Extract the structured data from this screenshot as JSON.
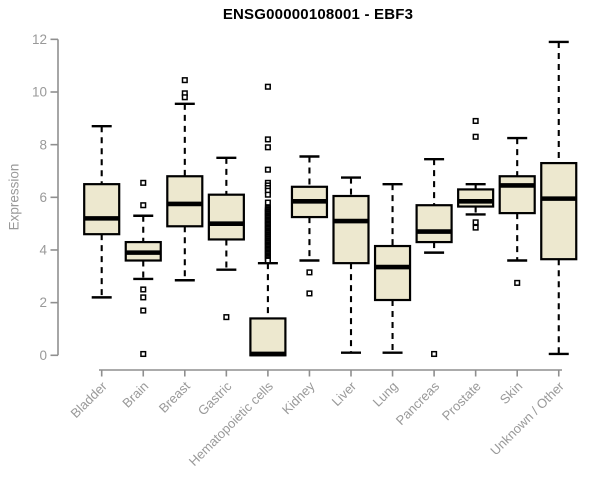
{
  "colors": {
    "box_fill": "#ede8cf",
    "box_stroke": "#000000",
    "axis_line": "#8f8f8f",
    "axis_text": "#999999",
    "title_text": "#000000",
    "background": "#ffffff"
  },
  "chart_data": {
    "type": "boxplot",
    "title": "ENSG00000108001 - EBF3",
    "xlabel": "",
    "ylabel": "Expression",
    "ylim": [
      0,
      12
    ],
    "yticks": [
      0,
      2,
      4,
      6,
      8,
      10,
      12
    ],
    "grid": false,
    "legend": "none",
    "categories": [
      "Bladder",
      "Brain",
      "Breast",
      "Gastric",
      "Hematopoietic cells",
      "Kidney",
      "Liver",
      "Lung",
      "Pancreas",
      "Prostate",
      "Skin",
      "Unknown / Other"
    ],
    "series": [
      {
        "name": "Bladder",
        "low": 2.2,
        "q1": 4.6,
        "median": 5.2,
        "q3": 6.5,
        "high": 8.7,
        "outliers": []
      },
      {
        "name": "Brain",
        "low": 2.9,
        "q1": 3.6,
        "median": 3.9,
        "q3": 4.3,
        "high": 5.3,
        "outliers": [
          6.55,
          5.7,
          2.5,
          2.2,
          1.7,
          0.05
        ]
      },
      {
        "name": "Breast",
        "low": 2.85,
        "q1": 4.9,
        "median": 5.75,
        "q3": 6.8,
        "high": 9.55,
        "outliers": [
          10.45,
          9.95,
          9.8
        ]
      },
      {
        "name": "Gastric",
        "low": 3.25,
        "q1": 4.4,
        "median": 5.0,
        "q3": 6.1,
        "high": 7.5,
        "outliers": [
          1.45
        ]
      },
      {
        "name": "Hematopoietic cells",
        "low": 0,
        "q1": 0,
        "median": 0.05,
        "q3": 1.4,
        "high": 3.5,
        "outliers": [
          10.2,
          8.2,
          7.9,
          7.05,
          6.55,
          6.45,
          6.35,
          6.25,
          6.1,
          5.8,
          5.6,
          5.55,
          5.5,
          5.45,
          5.4,
          5.35,
          5.3,
          5.25,
          5.2,
          5.15,
          5.1,
          5.05,
          5.0,
          4.95,
          4.9,
          4.85,
          4.8,
          4.75,
          4.7,
          4.65,
          4.6,
          4.55,
          4.5,
          4.45,
          4.4,
          4.35,
          4.3,
          4.25,
          4.2,
          4.15,
          4.1,
          4.05,
          4.0,
          3.95,
          3.9,
          3.85,
          3.8,
          3.75,
          3.7,
          3.65,
          3.6
        ]
      },
      {
        "name": "Kidney",
        "low": 3.6,
        "q1": 5.25,
        "median": 5.85,
        "q3": 6.4,
        "high": 7.55,
        "outliers": [
          3.15,
          2.35
        ]
      },
      {
        "name": "Liver",
        "low": 0.1,
        "q1": 3.5,
        "median": 5.1,
        "q3": 6.05,
        "high": 6.75,
        "outliers": []
      },
      {
        "name": "Lung",
        "low": 0.1,
        "q1": 2.1,
        "median": 3.35,
        "q3": 4.15,
        "high": 6.5,
        "outliers": []
      },
      {
        "name": "Pancreas",
        "low": 3.9,
        "q1": 4.3,
        "median": 4.7,
        "q3": 5.7,
        "high": 7.45,
        "outliers": [
          0.05
        ]
      },
      {
        "name": "Prostate",
        "low": 5.35,
        "q1": 5.65,
        "median": 5.85,
        "q3": 6.3,
        "high": 6.5,
        "outliers": [
          8.9,
          8.3,
          5.05,
          4.85
        ]
      },
      {
        "name": "Skin",
        "low": 3.6,
        "q1": 5.4,
        "median": 6.45,
        "q3": 6.8,
        "high": 8.25,
        "outliers": [
          2.75
        ]
      },
      {
        "name": "Unknown / Other",
        "low": 0.05,
        "q1": 3.65,
        "median": 5.95,
        "q3": 7.3,
        "high": 11.9,
        "outliers": []
      }
    ]
  }
}
